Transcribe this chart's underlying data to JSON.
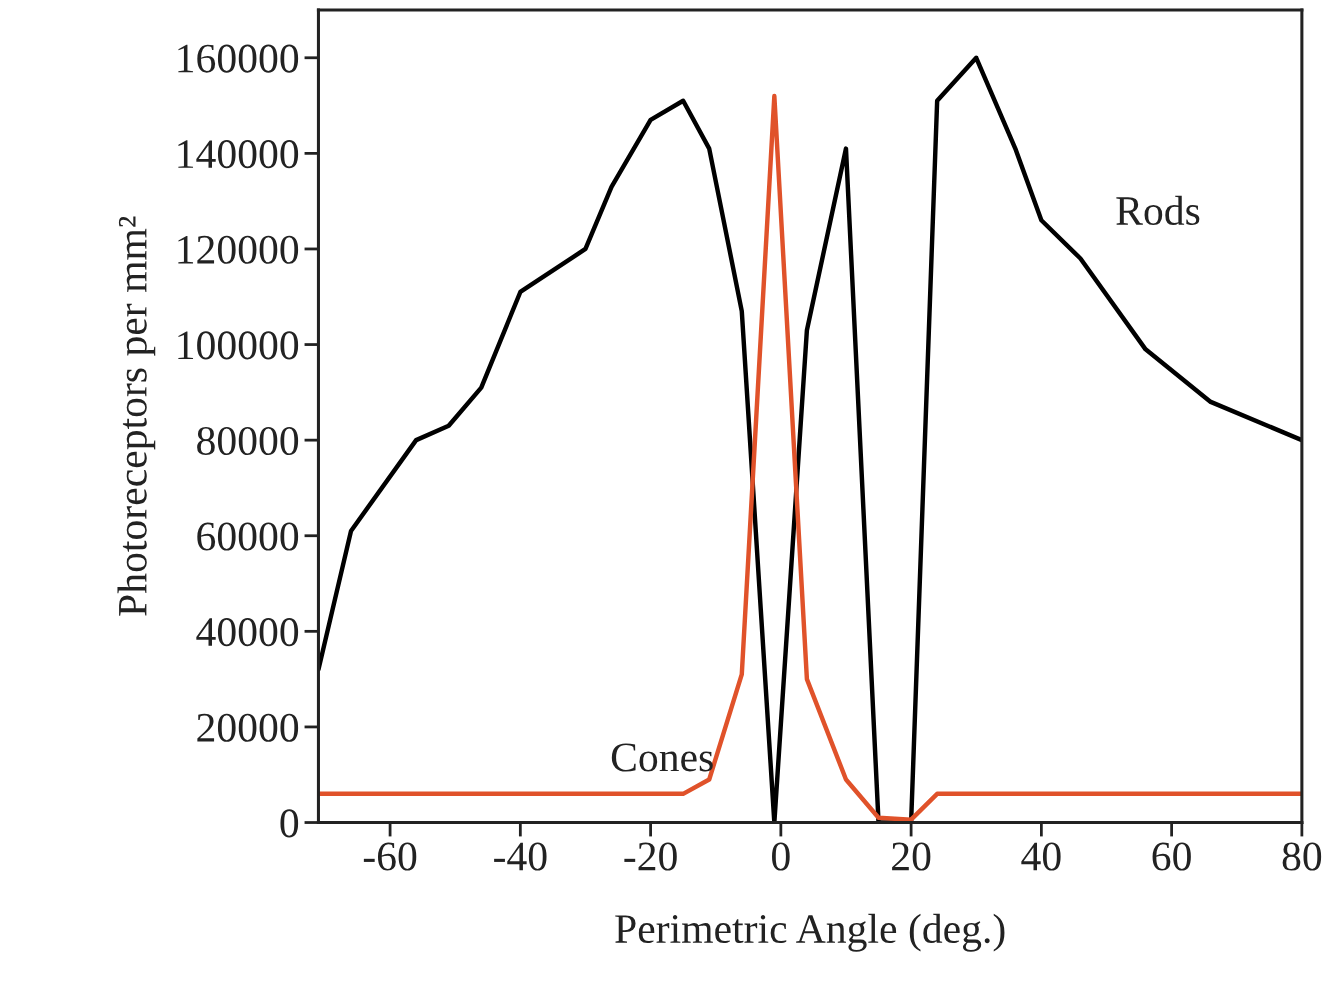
{
  "chart_data": {
    "type": "line",
    "xlabel": "Perimetric Angle (deg.)",
    "ylabel": "Photoreceptors per mm²",
    "xlim": [
      -71,
      80
    ],
    "xticks": [
      -60,
      -40,
      -20,
      0,
      20,
      40,
      60,
      80
    ],
    "ylim": [
      0,
      170000
    ],
    "yticks": [
      0,
      20000,
      40000,
      60000,
      80000,
      100000,
      120000,
      140000,
      160000
    ],
    "grid": false,
    "legend": false,
    "marker": "none",
    "line_style": "solid",
    "series": [
      {
        "name": "Rods",
        "color": "#000000",
        "x": [
          -71,
          -66,
          -56,
          -51,
          -46,
          -40,
          -30,
          -26,
          -20,
          -15,
          -11,
          -6,
          -1,
          4,
          10,
          15,
          20,
          24,
          30,
          36,
          40,
          46,
          56,
          66,
          80
        ],
        "values": [
          32000,
          61000,
          80000,
          83000,
          91000,
          111000,
          120000,
          133000,
          147000,
          151000,
          141000,
          107000,
          0,
          103000,
          141000,
          0,
          0,
          151000,
          160000,
          141000,
          126000,
          118000,
          99000,
          88000,
          80000
        ]
      },
      {
        "name": "Cones",
        "color": "#e0522a",
        "x": [
          -71,
          -15,
          -11,
          -6,
          -1,
          4,
          10,
          15,
          20,
          24,
          80
        ],
        "values": [
          6000,
          6000,
          9000,
          31000,
          152000,
          30000,
          9000,
          1000,
          600,
          6000,
          6000
        ]
      }
    ]
  }
}
